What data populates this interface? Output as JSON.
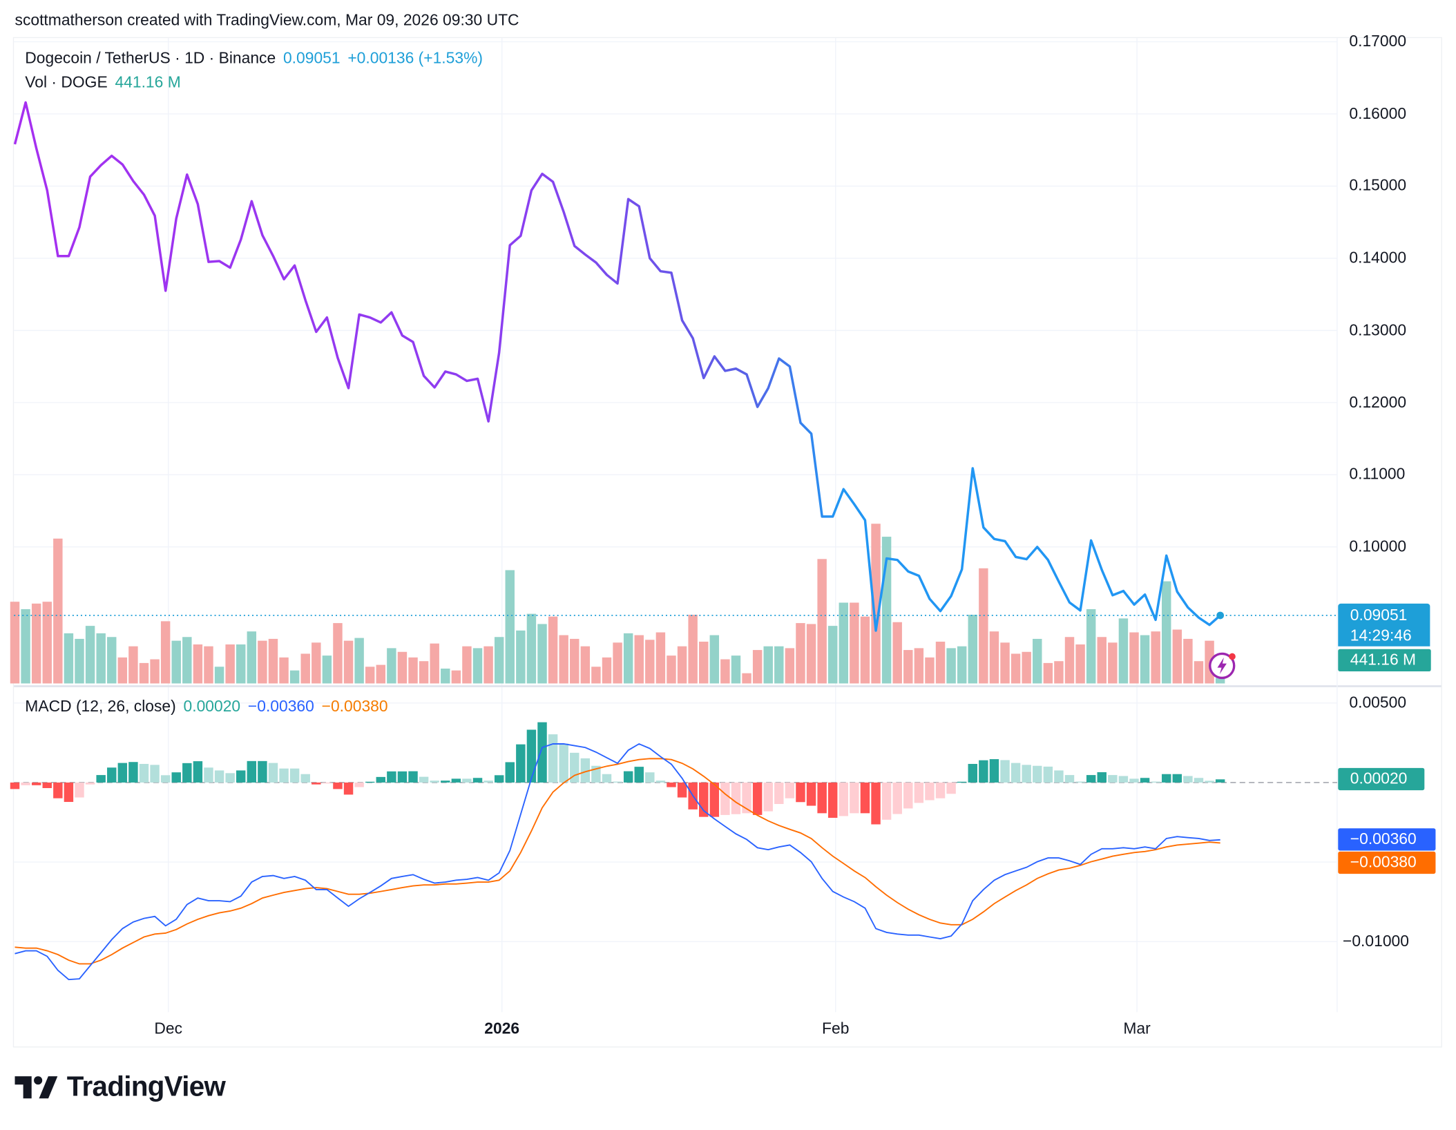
{
  "header": {
    "credit": "scottmatherson created with TradingView.com, Mar 09, 2026 09:30 UTC"
  },
  "legend": {
    "symbol": "Dogecoin / TetherUS · 1D · Binance",
    "last": "0.09051",
    "change": "+0.00136 (+1.53%)",
    "volume_label": "Vol · DOGE",
    "volume_value": "441.16 M",
    "macd_label": "MACD (12, 26, close)",
    "macd_hist": "0.00020",
    "macd_line": "−0.00360",
    "macd_signal": "−0.00380"
  },
  "tags": {
    "price": "0.09051",
    "countdown": "14:29:46",
    "volume": "441.16 M",
    "hist": "0.00020",
    "macd": "−0.00360",
    "signal": "−0.00380"
  },
  "colors": {
    "price_start": "#a62ff0",
    "price_end": "#2196f3",
    "vol_up": "#93d2c9",
    "vol_down": "#f5a8a6",
    "hist_up_strong": "#26a69a",
    "hist_up_weak": "#b2dfdb",
    "hist_down_strong": "#ff5252",
    "hist_down_weak": "#ffcdd2",
    "macd": "#2962ff",
    "signal": "#ff6d00",
    "last_price": "#1e9fd8"
  },
  "brand": {
    "name": "TradingView"
  },
  "chart_data": {
    "type": "line",
    "interval": "1D",
    "date_range": [
      "2025-11-17",
      "2026-03-09"
    ],
    "x_ticks": [
      {
        "label": "Dec",
        "date": "2025-12-01"
      },
      {
        "label": "2026",
        "date": "2026-01-01",
        "bold": true
      },
      {
        "label": "Feb",
        "date": "2026-02-01"
      },
      {
        "label": "Mar",
        "date": "2026-03-01"
      }
    ],
    "price": {
      "y_ticks": [
        "0.17000",
        "0.16000",
        "0.15000",
        "0.14000",
        "0.13000",
        "0.12000",
        "0.11000",
        "0.10000"
      ],
      "ylim": [
        0.0875,
        0.1705
      ],
      "close": [
        0.1558,
        0.1616,
        0.1552,
        0.1494,
        0.1403,
        0.1403,
        0.1443,
        0.1513,
        0.1529,
        0.1542,
        0.153,
        0.1507,
        0.1488,
        0.1459,
        0.1355,
        0.1455,
        0.1516,
        0.1475,
        0.1395,
        0.1396,
        0.1387,
        0.1426,
        0.1479,
        0.1432,
        0.1403,
        0.1371,
        0.139,
        0.1342,
        0.1298,
        0.1318,
        0.1262,
        0.122,
        0.1322,
        0.1318,
        0.1311,
        0.1325,
        0.1293,
        0.1284,
        0.1237,
        0.1221,
        0.1243,
        0.1239,
        0.123,
        0.1233,
        0.1174,
        0.1269,
        0.1418,
        0.1431,
        0.1494,
        0.1517,
        0.1506,
        0.1464,
        0.1417,
        0.1405,
        0.1394,
        0.1377,
        0.1365,
        0.1482,
        0.1472,
        0.14,
        0.1382,
        0.138,
        0.1314,
        0.1289,
        0.1234,
        0.1264,
        0.1244,
        0.1247,
        0.1239,
        0.1194,
        0.122,
        0.1261,
        0.125,
        0.1172,
        0.1157,
        0.1042,
        0.1042,
        0.108,
        0.1059,
        0.1037,
        0.0884,
        0.0984,
        0.0982,
        0.0966,
        0.096,
        0.0928,
        0.0911,
        0.0932,
        0.0969,
        0.1109,
        0.1027,
        0.1011,
        0.1008,
        0.0986,
        0.0983,
        0.1,
        0.0982,
        0.0952,
        0.0923,
        0.0912,
        0.1009,
        0.0968,
        0.0933,
        0.0939,
        0.092,
        0.0934,
        0.0899,
        0.0988,
        0.0938,
        0.0916,
        0.0902,
        0.0892,
        0.09051
      ]
    },
    "volume_millions": [
      6600,
      6000,
      6450,
      6600,
      11700,
      4050,
      3600,
      4650,
      4050,
      3750,
      2100,
      3000,
      1650,
      1950,
      5025,
      3450,
      3750,
      3150,
      3000,
      1350,
      3150,
      3150,
      4200,
      3450,
      3600,
      2100,
      1050,
      2400,
      3300,
      2250,
      4875,
      3450,
      3675,
      1350,
      1500,
      2850,
      2550,
      2100,
      1800,
      3225,
      1200,
      1050,
      3000,
      2850,
      3000,
      3750,
      9150,
      4275,
      5625,
      4800,
      5400,
      3900,
      3600,
      3000,
      1350,
      2100,
      3300,
      4050,
      3900,
      3525,
      4125,
      2250,
      3000,
      5550,
      3375,
      3900,
      1950,
      2250,
      825,
      2700,
      3000,
      3000,
      2850,
      4875,
      4800,
      10050,
      4650,
      6525,
      6525,
      5400,
      12900,
      11850,
      4950,
      2700,
      2850,
      2100,
      3375,
      2850,
      3000,
      5550,
      9300,
      4200,
      3300,
      2400,
      2550,
      3600,
      1650,
      1800,
      3750,
      3150,
      6000,
      3750,
      3300,
      5250,
      4125,
      3900,
      4200,
      8250,
      4350,
      3600,
      1800,
      3450,
      441.16
    ],
    "macd": {
      "y_ticks": [
        {
          "label": "0.00500",
          "value": 0.005
        },
        {
          "label": "−0.01000",
          "value": -0.01
        }
      ],
      "macd_line": [
        -0.01076,
        -0.01058,
        -0.01058,
        -0.01093,
        -0.01181,
        -0.01239,
        -0.01234,
        -0.01152,
        -0.0107,
        -0.00988,
        -0.00918,
        -0.00877,
        -0.00854,
        -0.00842,
        -0.00901,
        -0.0086,
        -0.00767,
        -0.00726,
        -0.00743,
        -0.00743,
        -0.00749,
        -0.00714,
        -0.00626,
        -0.00591,
        -0.00585,
        -0.00603,
        -0.00591,
        -0.00614,
        -0.00673,
        -0.00673,
        -0.00726,
        -0.00778,
        -0.00731,
        -0.00691,
        -0.0065,
        -0.00603,
        -0.00591,
        -0.00579,
        -0.00608,
        -0.00632,
        -0.00626,
        -0.00614,
        -0.00608,
        -0.00597,
        -0.00614,
        -0.00568,
        -0.00428,
        -0.002,
        0.00027,
        0.0022,
        0.00243,
        0.00243,
        0.00232,
        0.0022,
        0.00191,
        0.00156,
        0.00121,
        0.00203,
        0.00243,
        0.00214,
        0.00162,
        0.00115,
        0.00027,
        -0.00083,
        -0.00177,
        -0.00229,
        -0.00276,
        -0.00323,
        -0.00358,
        -0.0041,
        -0.00422,
        -0.00405,
        -0.00393,
        -0.0044,
        -0.00498,
        -0.00603,
        -0.00685,
        -0.0072,
        -0.00749,
        -0.0079,
        -0.00918,
        -0.00942,
        -0.00953,
        -0.00959,
        -0.00959,
        -0.00971,
        -0.00982,
        -0.00965,
        -0.00889,
        -0.00743,
        -0.00673,
        -0.00614,
        -0.00579,
        -0.00556,
        -0.00533,
        -0.00498,
        -0.00474,
        -0.00474,
        -0.00492,
        -0.00515,
        -0.00451,
        -0.00416,
        -0.00416,
        -0.0041,
        -0.00416,
        -0.00405,
        -0.00416,
        -0.00352,
        -0.0034,
        -0.00346,
        -0.00352,
        -0.00364,
        -0.0036
      ],
      "signal_line": [
        -0.01035,
        -0.01041,
        -0.01041,
        -0.01058,
        -0.01082,
        -0.01117,
        -0.0114,
        -0.0114,
        -0.01117,
        -0.01082,
        -0.01041,
        -0.01006,
        -0.00971,
        -0.00953,
        -0.00947,
        -0.00924,
        -0.00889,
        -0.0086,
        -0.00837,
        -0.00819,
        -0.00808,
        -0.0079,
        -0.00761,
        -0.00726,
        -0.00708,
        -0.00691,
        -0.00679,
        -0.00667,
        -0.00661,
        -0.00667,
        -0.00685,
        -0.00702,
        -0.00702,
        -0.00696,
        -0.00685,
        -0.00673,
        -0.00661,
        -0.0065,
        -0.00644,
        -0.00644,
        -0.00638,
        -0.00638,
        -0.00632,
        -0.00626,
        -0.00626,
        -0.00614,
        -0.00556,
        -0.0044,
        -0.00305,
        -0.00159,
        -0.0006,
        -2e-05,
        0.00045,
        0.00068,
        0.00086,
        0.00103,
        0.00115,
        0.00132,
        0.00144,
        0.0015,
        0.0015,
        0.00144,
        0.00121,
        0.00086,
        0.00039,
        -0.00013,
        -0.00072,
        -0.00124,
        -0.00165,
        -0.00206,
        -0.00241,
        -0.0027,
        -0.00294,
        -0.00317,
        -0.00352,
        -0.0041,
        -0.00463,
        -0.00509,
        -0.00556,
        -0.00597,
        -0.00655,
        -0.00708,
        -0.00755,
        -0.00796,
        -0.00831,
        -0.0086,
        -0.00883,
        -0.00894,
        -0.00894,
        -0.0086,
        -0.00813,
        -0.00761,
        -0.0072,
        -0.00679,
        -0.00644,
        -0.00603,
        -0.00574,
        -0.0055,
        -0.00539,
        -0.00521,
        -0.00498,
        -0.00481,
        -0.00463,
        -0.00451,
        -0.0044,
        -0.00434,
        -0.00422,
        -0.00405,
        -0.00393,
        -0.00387,
        -0.00381,
        -0.00375,
        -0.0038
      ]
    }
  }
}
